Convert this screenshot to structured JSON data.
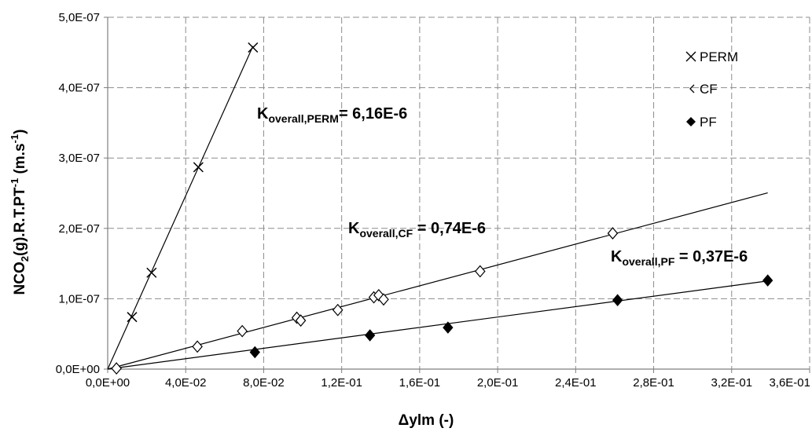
{
  "chart_data": {
    "type": "scatter",
    "xlabel": "Δylm (-)",
    "ylabel_parts": {
      "main": "NCO",
      "sub": "2",
      "mid": "(g).R.T.PT",
      "sup": "-1",
      "end": " (m.s",
      "sup2": "-1",
      "close": ")"
    },
    "xlim": [
      0,
      0.36
    ],
    "ylim": [
      0,
      5e-07
    ],
    "x_ticks": [
      0,
      0.04,
      0.08,
      0.12,
      0.16,
      0.2,
      0.24,
      0.28,
      0.32,
      0.36
    ],
    "x_tick_labels": [
      "0,0E+00",
      "4,0E-02",
      "8,0E-02",
      "1,2E-01",
      "1,6E-01",
      "2,0E-01",
      "2,4E-01",
      "2,8E-01",
      "3,2E-01",
      "3,6E-01"
    ],
    "y_ticks": [
      0,
      1e-07,
      2e-07,
      3e-07,
      4e-07,
      5e-07
    ],
    "y_tick_labels": [
      "0,0E+00",
      "1,0E-07",
      "2,0E-07",
      "3,0E-07",
      "4,0E-07",
      "5,0E-07"
    ],
    "grid": true,
    "legend_position": "top-right",
    "series": [
      {
        "name": "PERM",
        "marker": "x",
        "points": [
          [
            0.0125,
            7.4e-08
          ],
          [
            0.0225,
            1.37e-07
          ],
          [
            0.0465,
            2.87e-07
          ],
          [
            0.0745,
            4.57e-07
          ]
        ],
        "fit": {
          "slope": 6.16e-06,
          "x_end": 0.0745
        }
      },
      {
        "name": "CF",
        "marker": "open-diamond",
        "points": [
          [
            0.0045,
            1e-09
          ],
          [
            0.046,
            3.2e-08
          ],
          [
            0.069,
            5.4e-08
          ],
          [
            0.097,
            7.3e-08
          ],
          [
            0.099,
            6.9e-08
          ],
          [
            0.118,
            8.4e-08
          ],
          [
            0.1365,
            1.02e-07
          ],
          [
            0.139,
            1.05e-07
          ],
          [
            0.1415,
            9.9e-08
          ],
          [
            0.191,
            1.39e-07
          ],
          [
            0.259,
            1.93e-07
          ]
        ],
        "fit": {
          "slope": 7.4e-07,
          "x_end": 0.3385
        }
      },
      {
        "name": "PF",
        "marker": "filled-diamond",
        "points": [
          [
            0.0755,
            2.4e-08
          ],
          [
            0.1345,
            4.8e-08
          ],
          [
            0.1745,
            5.9e-08
          ],
          [
            0.2615,
            9.8e-08
          ],
          [
            0.3385,
            1.26e-07
          ]
        ],
        "fit": {
          "slope": 3.7e-07,
          "x_end": 0.3385
        }
      }
    ],
    "annotations": [
      {
        "main": "K",
        "sub": "overall,PERM",
        "rest": "= 6,16E-6"
      },
      {
        "main": "K",
        "sub": "overall,CF",
        "rest": " = 0,74E-6"
      },
      {
        "main": "K",
        "sub": "overall,PF",
        "rest": " = 0,37E-6"
      }
    ]
  }
}
